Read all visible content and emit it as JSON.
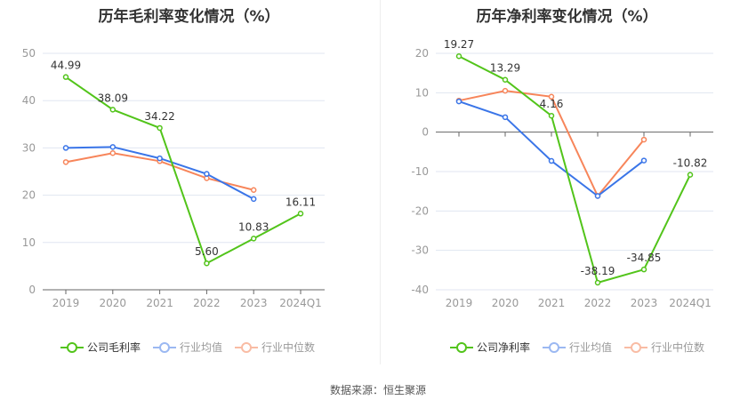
{
  "chart_data": [
    {
      "type": "line",
      "title": "历年毛利率变化情况（%）",
      "categories": [
        "2019",
        "2020",
        "2021",
        "2022",
        "2023",
        "2024Q1"
      ],
      "ylim": [
        0,
        50
      ],
      "yticks": [
        0,
        10,
        20,
        30,
        40,
        50
      ],
      "grid": true,
      "legend_position": "bottom",
      "series": [
        {
          "name": "公司毛利率",
          "color": "#52c41a",
          "values": [
            44.99,
            38.09,
            34.22,
            5.6,
            10.83,
            16.11
          ],
          "labels": [
            "44.99",
            "38.09",
            "34.22",
            "5.60",
            "10.83",
            "16.11"
          ]
        },
        {
          "name": "行业均值",
          "color": "#3a75e8",
          "values": [
            30.0,
            30.2,
            27.8,
            24.5,
            19.2,
            null
          ]
        },
        {
          "name": "行业中位数",
          "color": "#f7855a",
          "values": [
            27.0,
            28.9,
            27.2,
            23.6,
            21.1,
            null
          ]
        }
      ]
    },
    {
      "type": "line",
      "title": "历年净利率变化情况（%）",
      "categories": [
        "2019",
        "2020",
        "2021",
        "2022",
        "2023",
        "2024Q1"
      ],
      "ylim": [
        -40,
        20
      ],
      "yticks": [
        -40,
        -30,
        -20,
        -10,
        0,
        10,
        20
      ],
      "grid": true,
      "legend_position": "bottom",
      "series": [
        {
          "name": "公司净利率",
          "color": "#52c41a",
          "values": [
            19.27,
            13.29,
            4.16,
            -38.19,
            -34.85,
            -10.82
          ],
          "labels": [
            "19.27",
            "13.29",
            "4.16",
            "-38.19",
            "-34.85",
            "-10.82"
          ]
        },
        {
          "name": "行业均值",
          "color": "#3a75e8",
          "values": [
            7.8,
            3.8,
            -7.3,
            -16.2,
            -7.2,
            null
          ]
        },
        {
          "name": "行业中位数",
          "color": "#f7855a",
          "values": [
            8.0,
            10.5,
            9.0,
            -16.2,
            -1.9,
            null
          ]
        }
      ]
    }
  ],
  "footer": "数据来源：恒生聚源"
}
